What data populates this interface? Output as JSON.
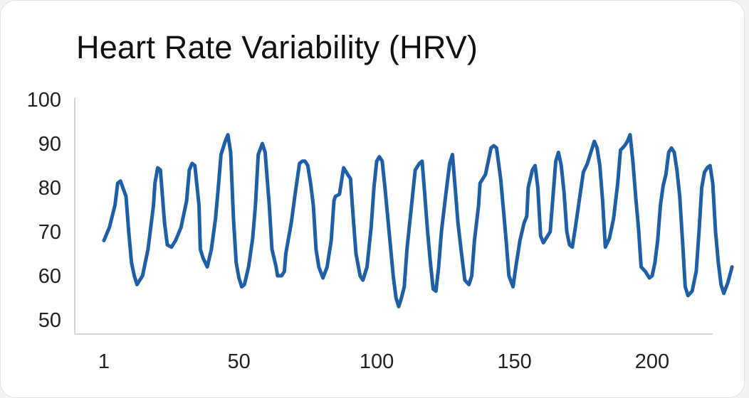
{
  "chart_data": {
    "type": "line",
    "title": "Heart Rate Variability (HRV)",
    "xlabel": "",
    "ylabel": "",
    "xlim": [
      1,
      222
    ],
    "ylim": [
      50,
      100
    ],
    "x_ticks": [
      1,
      50,
      100,
      150,
      200
    ],
    "y_ticks": [
      50,
      60,
      70,
      80,
      90,
      100
    ],
    "grid": false,
    "legend": "none",
    "series": [
      {
        "color": "#1f5fa8",
        "points": [
          [
            1,
            68
          ],
          [
            3,
            71
          ],
          [
            5,
            76
          ],
          [
            6,
            81
          ],
          [
            7,
            81.5
          ],
          [
            9,
            78
          ],
          [
            10,
            70
          ],
          [
            11,
            63
          ],
          [
            12,
            60
          ],
          [
            13,
            58
          ],
          [
            14,
            59
          ],
          [
            15,
            60
          ],
          [
            17,
            66
          ],
          [
            19,
            76
          ],
          [
            19.5,
            81
          ],
          [
            20.5,
            84.5
          ],
          [
            21.5,
            84
          ],
          [
            23,
            72
          ],
          [
            24,
            67
          ],
          [
            25.5,
            66.5
          ],
          [
            27,
            68
          ],
          [
            29,
            71
          ],
          [
            31,
            77
          ],
          [
            32,
            84
          ],
          [
            33,
            85.5
          ],
          [
            34,
            85
          ],
          [
            35.5,
            76
          ],
          [
            36,
            66
          ],
          [
            37,
            64
          ],
          [
            38.5,
            62
          ],
          [
            40,
            66
          ],
          [
            41.5,
            73
          ],
          [
            42.5,
            80
          ],
          [
            43.5,
            87.5
          ],
          [
            45,
            90.5
          ],
          [
            46,
            92
          ],
          [
            47,
            88
          ],
          [
            48,
            73
          ],
          [
            49,
            63
          ],
          [
            50,
            59.5
          ],
          [
            51,
            57.5
          ],
          [
            52,
            58
          ],
          [
            53.5,
            62
          ],
          [
            55,
            68.5
          ],
          [
            56,
            76
          ],
          [
            57,
            87.5
          ],
          [
            58.5,
            90
          ],
          [
            59.5,
            88
          ],
          [
            61,
            76
          ],
          [
            62,
            66
          ],
          [
            63.5,
            62
          ],
          [
            64,
            60
          ],
          [
            65.5,
            60
          ],
          [
            66.5,
            61
          ],
          [
            67,
            65
          ],
          [
            69,
            72
          ],
          [
            70.5,
            79
          ],
          [
            72,
            85.5
          ],
          [
            73,
            86
          ],
          [
            74,
            86
          ],
          [
            75,
            85
          ],
          [
            76,
            81
          ],
          [
            77,
            76
          ],
          [
            78,
            66
          ],
          [
            79,
            62
          ],
          [
            80.5,
            59.5
          ],
          [
            82,
            62
          ],
          [
            83.5,
            68
          ],
          [
            84.5,
            77
          ],
          [
            85,
            78
          ],
          [
            86.5,
            78.5
          ],
          [
            88,
            84.5
          ],
          [
            89.5,
            83
          ],
          [
            90.5,
            82
          ],
          [
            91.5,
            73
          ],
          [
            92.5,
            65
          ],
          [
            94,
            60
          ],
          [
            95,
            59
          ],
          [
            96.5,
            62
          ],
          [
            98,
            71
          ],
          [
            99,
            80
          ],
          [
            100,
            86
          ],
          [
            101,
            87
          ],
          [
            102,
            86
          ],
          [
            103,
            80
          ],
          [
            104.5,
            70
          ],
          [
            106,
            60
          ],
          [
            107,
            55
          ],
          [
            108,
            53
          ],
          [
            109,
            55
          ],
          [
            110,
            57.5
          ],
          [
            111,
            66
          ],
          [
            112.5,
            75
          ],
          [
            114,
            84
          ],
          [
            115.5,
            85.5
          ],
          [
            116.5,
            86
          ],
          [
            117.5,
            78
          ],
          [
            118.5,
            70
          ],
          [
            119.5,
            63
          ],
          [
            120.5,
            57
          ],
          [
            121.5,
            56.5
          ],
          [
            122.5,
            62
          ],
          [
            123.5,
            70
          ],
          [
            125,
            78
          ],
          [
            126.5,
            85.5
          ],
          [
            127.5,
            87.5
          ],
          [
            128.5,
            80
          ],
          [
            129.5,
            72
          ],
          [
            131,
            64
          ],
          [
            132,
            59
          ],
          [
            133.5,
            58
          ],
          [
            134.5,
            60
          ],
          [
            135.5,
            68
          ],
          [
            137,
            76
          ],
          [
            137.5,
            81
          ],
          [
            139.5,
            83
          ],
          [
            140.5,
            86
          ],
          [
            141.5,
            89
          ],
          [
            142.5,
            89.5
          ],
          [
            143.5,
            89
          ],
          [
            145,
            82
          ],
          [
            146,
            75
          ],
          [
            147,
            68
          ],
          [
            148,
            60
          ],
          [
            149.5,
            57.5
          ],
          [
            150.5,
            62
          ],
          [
            152,
            68
          ],
          [
            153.5,
            72
          ],
          [
            154.5,
            73.5
          ],
          [
            155,
            80
          ],
          [
            156.5,
            84
          ],
          [
            157.5,
            85
          ],
          [
            158.5,
            80
          ],
          [
            159.5,
            69
          ],
          [
            160.5,
            67.5
          ],
          [
            162,
            69
          ],
          [
            163,
            70
          ],
          [
            164,
            78
          ],
          [
            165,
            86
          ],
          [
            166,
            88
          ],
          [
            167,
            85
          ],
          [
            168,
            79
          ],
          [
            169,
            70
          ],
          [
            170,
            67
          ],
          [
            171,
            66.5
          ],
          [
            172,
            70.5
          ],
          [
            173.5,
            77
          ],
          [
            175,
            83.5
          ],
          [
            176.5,
            85.5
          ],
          [
            177.5,
            87.5
          ],
          [
            179,
            90.5
          ],
          [
            180,
            89
          ],
          [
            181,
            85
          ],
          [
            182,
            77
          ],
          [
            183,
            66.5
          ],
          [
            184.5,
            68.5
          ],
          [
            186,
            73
          ],
          [
            187.5,
            81
          ],
          [
            188.5,
            88.5
          ],
          [
            190,
            89.5
          ],
          [
            191,
            90.5
          ],
          [
            192,
            92
          ],
          [
            193,
            86
          ],
          [
            194,
            78
          ],
          [
            195,
            71
          ],
          [
            196,
            62
          ],
          [
            197.5,
            61
          ],
          [
            199,
            59.5
          ],
          [
            200,
            60
          ],
          [
            201,
            63
          ],
          [
            202,
            68
          ],
          [
            203,
            76
          ],
          [
            204,
            80.5
          ],
          [
            205,
            83
          ],
          [
            206,
            88
          ],
          [
            207,
            89
          ],
          [
            208,
            88
          ],
          [
            209,
            84
          ],
          [
            210,
            78
          ],
          [
            211,
            68
          ],
          [
            212,
            57.5
          ],
          [
            213,
            55.5
          ],
          [
            214.5,
            56.5
          ],
          [
            216,
            61
          ],
          [
            217,
            70
          ],
          [
            218,
            80
          ],
          [
            219,
            83.5
          ],
          [
            220,
            84.5
          ],
          [
            221,
            85
          ],
          [
            222,
            81
          ],
          [
            223,
            70
          ],
          [
            224,
            63
          ],
          [
            225,
            58
          ],
          [
            226,
            56
          ],
          [
            227.5,
            58.5
          ],
          [
            229,
            62
          ]
        ]
      }
    ]
  }
}
